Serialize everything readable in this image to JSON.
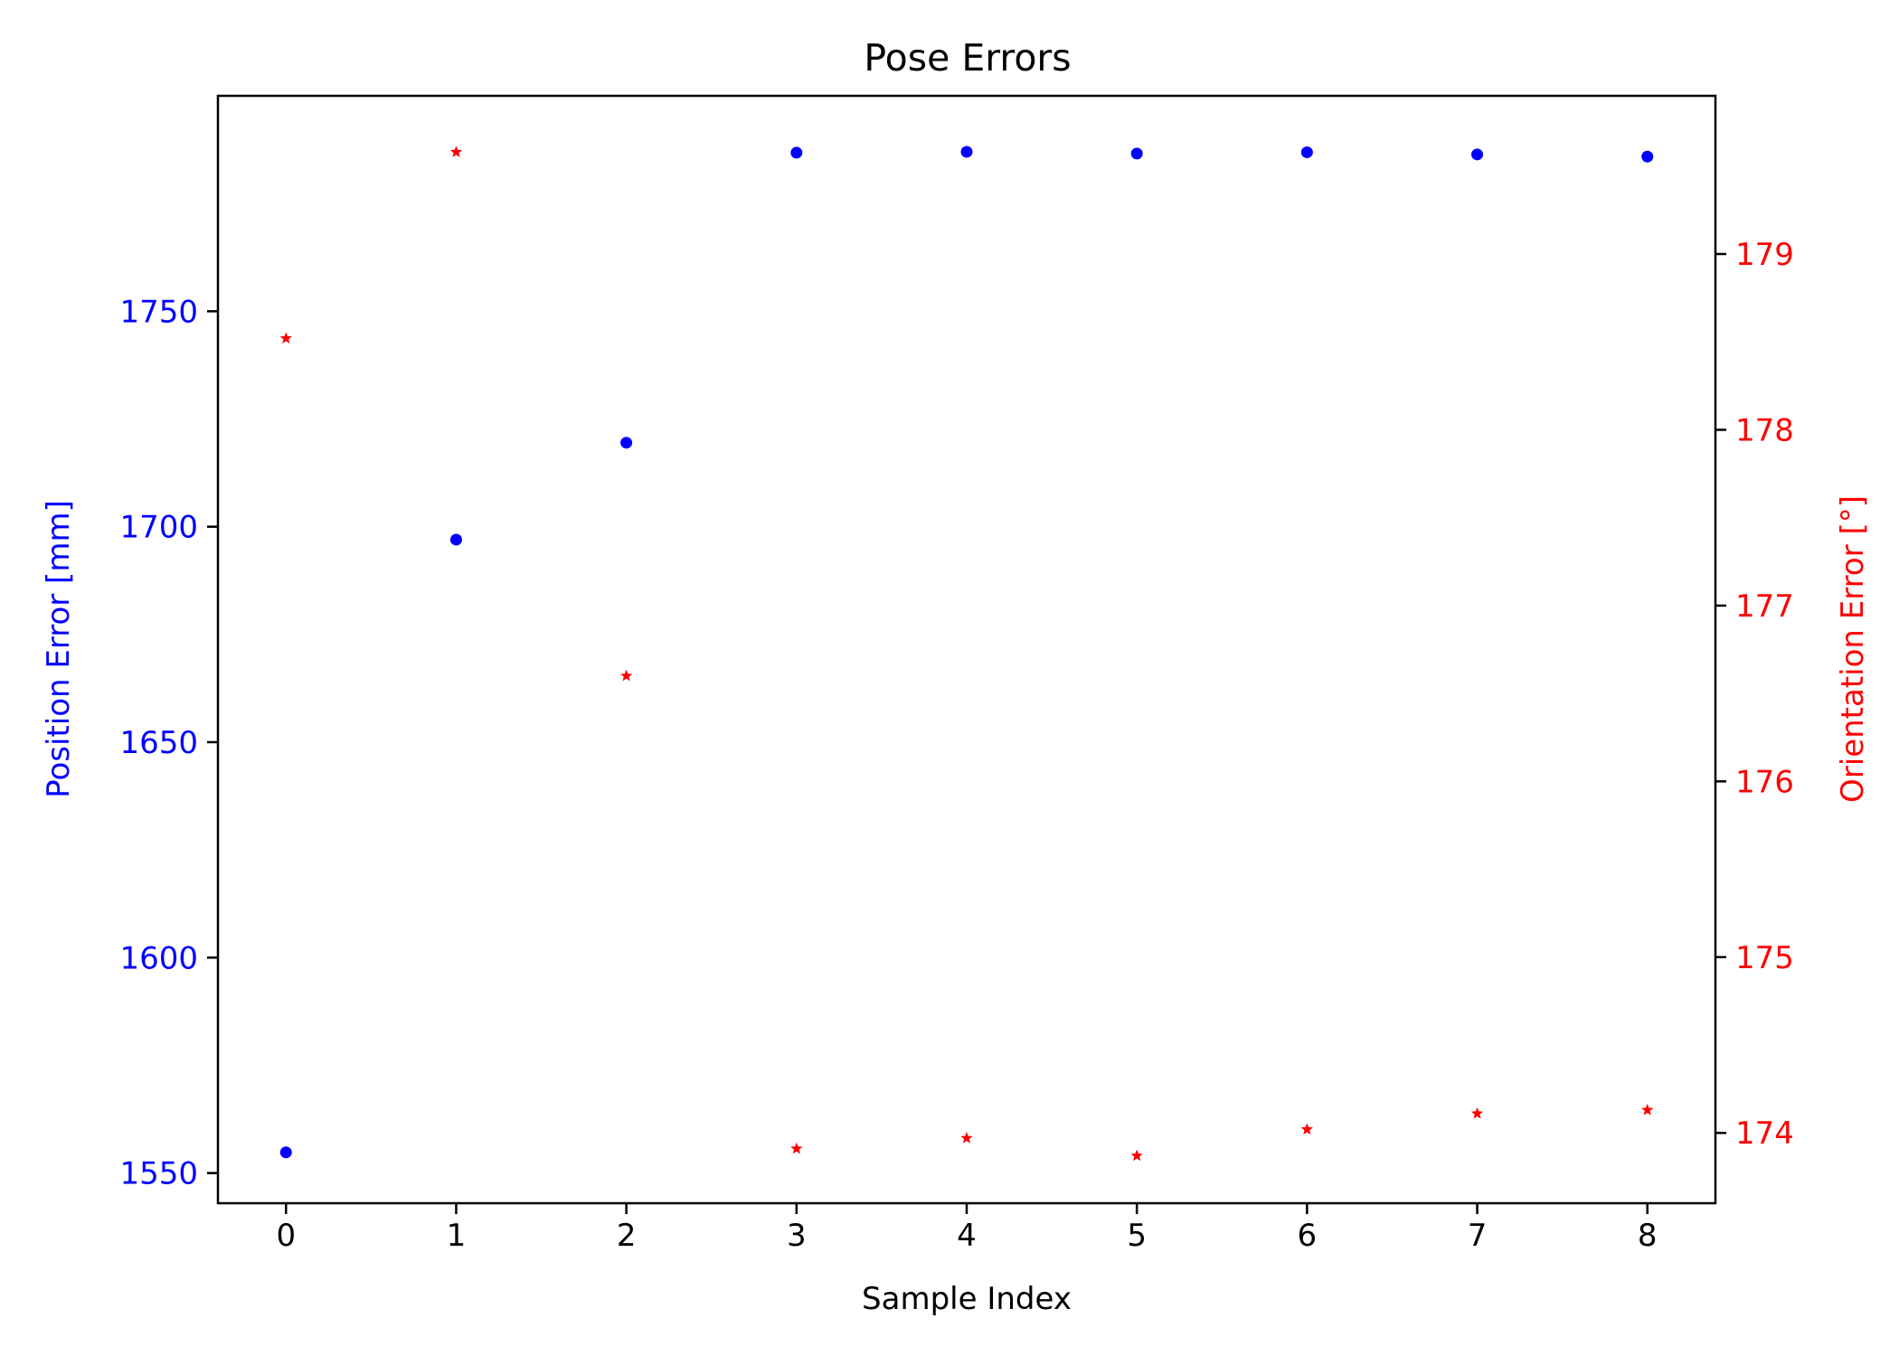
{
  "chart_data": {
    "type": "scatter",
    "title": "Pose Errors",
    "xlabel": "Sample Index",
    "ylabel": "Position Error [mm]",
    "y2label": "Orientation Error [°]",
    "x": [
      0,
      1,
      2,
      3,
      4,
      5,
      6,
      7,
      8
    ],
    "xticks": [
      "0",
      "1",
      "2",
      "3",
      "4",
      "5",
      "6",
      "7",
      "8"
    ],
    "yticks": [
      "1550",
      "1600",
      "1650",
      "1700",
      "1750"
    ],
    "y2ticks": [
      "174",
      "175",
      "176",
      "177",
      "178",
      "179"
    ],
    "xlim": [
      -0.4,
      8.4
    ],
    "ylim": [
      1543,
      1800
    ],
    "y2lim": [
      173.6,
      179.9
    ],
    "grid": false,
    "series": [
      {
        "axis": "left",
        "marker": "dot",
        "color": "#0000ff",
        "values": [
          1554.8,
          1697,
          1719.5,
          1786.8,
          1787,
          1786.6,
          1786.9,
          1786.4,
          1785.9
        ]
      },
      {
        "axis": "right",
        "marker": "star",
        "color": "#ff0000",
        "values": [
          178.52,
          179.58,
          176.6,
          173.91,
          173.97,
          173.87,
          174.02,
          174.11,
          174.13
        ]
      }
    ],
    "colors": {
      "left_axis": "#0000ff",
      "right_axis": "#ff0000",
      "frame": "#000000"
    }
  }
}
